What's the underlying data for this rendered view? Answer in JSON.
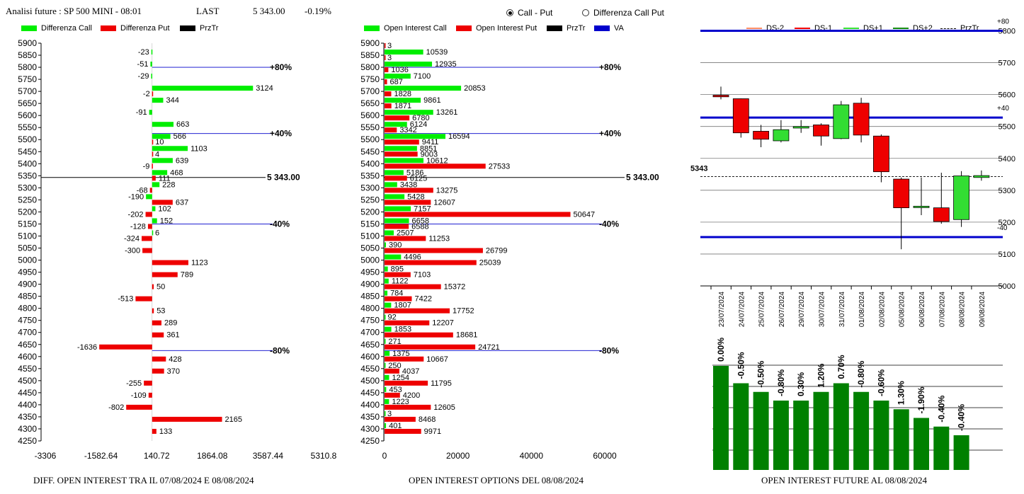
{
  "header": {
    "title": "Analisi future : SP 500 MINI - 08:01",
    "last_label": "LAST",
    "last_value": "5 343.00",
    "change": "-0.19%"
  },
  "radio": {
    "option1": "Call - Put",
    "option2": "Differenza Call Put",
    "selected": "option1"
  },
  "colors": {
    "call": "#00ee00",
    "put": "#ee0000",
    "prztr": "#000000",
    "va": "#0000cc",
    "ds_minus2": "#ff8a65",
    "ds_minus1": "#ee0000",
    "ds_plus1": "#33dd33",
    "ds_plus2": "#118811",
    "oi_future": "#008000"
  },
  "chart1_legend": {
    "call": "Differenza Call",
    "put": "Differenza Put",
    "prztr": "PrzTr"
  },
  "chart2_legend": {
    "call": "Open Interest Call",
    "put": "Open Interest Put",
    "prztr": "PrzTr",
    "va": "VA"
  },
  "chart3_legend": {
    "ds_minus2": "DS-2",
    "ds_minus1": "DS-1",
    "ds_plus1": "DS+1",
    "ds_plus2": "DS+2",
    "prztr": "PrzTr"
  },
  "chart_data": [
    {
      "type": "bar",
      "title": "DIFF. OPEN INTEREST TRA IL 07/08/2024 E 08/08/2024",
      "orientation": "horizontal",
      "strikes": [
        5900,
        5850,
        5800,
        5750,
        5700,
        5650,
        5600,
        5550,
        5500,
        5450,
        5400,
        5350,
        5300,
        5250,
        5200,
        5150,
        5100,
        5050,
        5000,
        4950,
        4900,
        4850,
        4800,
        4750,
        4700,
        4650,
        4600,
        4550,
        4500,
        4450,
        4400,
        4350,
        4300,
        4250
      ],
      "series": [
        {
          "name": "Differenza Call",
          "values": [
            null,
            -23,
            -51,
            -29,
            3124,
            344,
            -91,
            663,
            566,
            1103,
            639,
            468,
            228,
            -190,
            102,
            152,
            6,
            null,
            null,
            null,
            null,
            null,
            null,
            null,
            null,
            null,
            null,
            null,
            null,
            null,
            null,
            null,
            null,
            null
          ]
        },
        {
          "name": "Differenza Put",
          "values": [
            null,
            null,
            null,
            null,
            -2,
            null,
            null,
            null,
            10,
            4,
            -9,
            111,
            -68,
            637,
            -202,
            -128,
            -324,
            -300,
            1123,
            789,
            50,
            -513,
            53,
            289,
            361,
            -1636,
            428,
            370,
            -255,
            -109,
            -802,
            2165,
            133,
            null
          ]
        }
      ],
      "xlim": [
        -3306,
        5310.8
      ],
      "x_ticks": [
        "-3306",
        "-1582.64",
        "140.72",
        "1864.08",
        "3587.44",
        "5310.8"
      ],
      "annotations": [
        {
          "strike": 5800,
          "label": "+80%"
        },
        {
          "strike": 5525,
          "label": "+40%"
        },
        {
          "strike": 5150,
          "label": "-40%"
        },
        {
          "strike": 4625,
          "label": "-80%"
        }
      ],
      "price_line": {
        "strike": 5343,
        "label": "5 343.00"
      }
    },
    {
      "type": "bar",
      "title": "OPEN INTEREST OPTIONS DEL 08/08/2024",
      "orientation": "horizontal",
      "strikes": [
        5900,
        5850,
        5800,
        5750,
        5700,
        5650,
        5600,
        5550,
        5500,
        5450,
        5400,
        5350,
        5300,
        5250,
        5200,
        5150,
        5100,
        5050,
        5000,
        4950,
        4900,
        4850,
        4800,
        4750,
        4700,
        4650,
        4600,
        4550,
        4500,
        4450,
        4400,
        4350,
        4300,
        4250
      ],
      "series": [
        {
          "name": "Open Interest Call",
          "values": [
            null,
            10539,
            12935,
            7100,
            20853,
            9861,
            13261,
            6124,
            16594,
            8851,
            10612,
            5186,
            3438,
            5428,
            7157,
            6658,
            2507,
            390,
            4496,
            895,
            1122,
            784,
            1807,
            92,
            1853,
            271,
            1375,
            250,
            1254,
            453,
            1223,
            3,
            401,
            null
          ]
        },
        {
          "name": "Open Interest Put",
          "values": [
            3,
            3,
            1036,
            687,
            1828,
            1871,
            6780,
            3342,
            9411,
            9003,
            27533,
            6125,
            13275,
            12607,
            50647,
            6588,
            11253,
            26799,
            25039,
            7103,
            15372,
            7422,
            17752,
            12207,
            18681,
            24721,
            10667,
            4037,
            11795,
            4200,
            12605,
            8468,
            9971,
            null
          ]
        }
      ],
      "xlim": [
        0,
        60000
      ],
      "x_ticks": [
        "0",
        "20000",
        "40000",
        "60000"
      ],
      "annotations": [
        {
          "strike": 5800,
          "label": "+80%"
        },
        {
          "strike": 5525,
          "label": "+40%"
        },
        {
          "strike": 5150,
          "label": "-40%"
        },
        {
          "strike": 4625,
          "label": "-80%"
        }
      ],
      "price_line": {
        "strike": 5343,
        "label": "5 343.00"
      }
    },
    {
      "type": "candlestick",
      "dates": [
        "23/07/2024",
        "24/07/2024",
        "25/07/2024",
        "26/07/2024",
        "29/07/2024",
        "30/07/2024",
        "31/07/2024",
        "01/08/2024",
        "02/08/2024",
        "05/08/2024",
        "06/08/2024",
        "07/08/2024",
        "08/08/2024",
        "09/08/2024"
      ],
      "ohlc": [
        [
          5598,
          5625,
          5585,
          5593
        ],
        [
          5587,
          5588,
          5465,
          5480
        ],
        [
          5485,
          5505,
          5435,
          5460
        ],
        [
          5455,
          5520,
          5450,
          5490
        ],
        [
          5495,
          5520,
          5480,
          5500
        ],
        [
          5505,
          5510,
          5440,
          5470
        ],
        [
          5462,
          5580,
          5460,
          5568
        ],
        [
          5573,
          5590,
          5450,
          5473
        ],
        [
          5470,
          5475,
          5325,
          5358
        ],
        [
          5335,
          5340,
          5115,
          5245
        ],
        [
          5250,
          5340,
          5222,
          5250
        ],
        [
          5245,
          5355,
          5195,
          5202
        ],
        [
          5208,
          5360,
          5185,
          5345
        ],
        [
          5340,
          5362,
          5330,
          5346
        ]
      ],
      "ylim": [
        5000,
        5830
      ],
      "y_ticks": [
        "5000",
        "5100",
        "5200",
        "5300",
        "5400",
        "5500",
        "5600",
        "5700",
        "5800"
      ],
      "levels": [
        {
          "value": 5800,
          "label": "+80"
        },
        {
          "value": 5528,
          "label": "+40"
        },
        {
          "value": 5153,
          "label": "-40"
        }
      ],
      "price": {
        "value": 5343,
        "label": "5343"
      }
    },
    {
      "type": "bar",
      "title": "OPEN INTEREST FUTURE AL 08/08/2024",
      "categories": [
        "23/07/2024",
        "24/07/2024",
        "25/07/2024",
        "26/07/2024",
        "29/07/2024",
        "30/07/2024",
        "31/07/2024",
        "01/08/2024",
        "02/08/2024",
        "05/08/2024",
        "06/08/2024",
        "07/08/2024",
        "08/08/2024"
      ],
      "values": [
        1.0,
        0.99,
        0.985,
        0.98,
        0.98,
        0.985,
        0.99,
        0.985,
        0.98,
        0.975,
        0.97,
        0.965,
        0.96
      ],
      "labels": [
        "0.00%",
        "-0.50%",
        "-0.50%",
        "-0.80%",
        "0.30%",
        "1.20%",
        "0.70%",
        "-0.80%",
        "-0.60%",
        "1.30%",
        "-1.90%",
        "-0.40%",
        "-0.40%"
      ]
    }
  ]
}
